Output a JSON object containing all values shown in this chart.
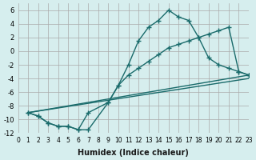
{
  "xlabel": "Humidex (Indice chaleur)",
  "ylabel": "",
  "background_color": "#d6eeee",
  "line_color": "#1a6b6b",
  "xlim": [
    0,
    23
  ],
  "ylim": [
    -12,
    7
  ],
  "yticks": [
    -12,
    -10,
    -8,
    -6,
    -4,
    -2,
    0,
    2,
    4,
    6
  ],
  "xticks": [
    0,
    1,
    2,
    3,
    4,
    5,
    6,
    7,
    8,
    9,
    10,
    11,
    12,
    13,
    14,
    15,
    16,
    17,
    18,
    19,
    20,
    21,
    22,
    23
  ],
  "line1_x": [
    1,
    2,
    3,
    4,
    5,
    6,
    7,
    9,
    10,
    11,
    12,
    13,
    14,
    15,
    16,
    17,
    18,
    19,
    20,
    21,
    22,
    23
  ],
  "line1_y": [
    -9,
    -9.5,
    -10.5,
    -11,
    -11,
    -11.5,
    -11.5,
    -7.5,
    -5,
    -2,
    1.5,
    3.5,
    4.5,
    6,
    5,
    4.5,
    2,
    -1,
    -2,
    -2.5,
    -3,
    -3.5
  ],
  "line2_x": [
    1,
    2,
    3,
    4,
    5,
    6,
    7,
    9,
    10,
    11,
    12,
    13,
    14,
    15,
    16,
    17,
    18,
    19,
    20,
    21,
    22,
    23
  ],
  "line2_y": [
    -9,
    -9.5,
    -10.5,
    -11,
    -11,
    -11.5,
    -9,
    -7.5,
    -5,
    -3.5,
    -2.5,
    -1.5,
    -0.5,
    0.5,
    1,
    1.5,
    2,
    2.5,
    3,
    3.5,
    -3,
    -3.5
  ],
  "line3_x": [
    1,
    23
  ],
  "line3_y": [
    -9,
    -4
  ],
  "line4_x": [
    1,
    23
  ],
  "line4_y": [
    -9,
    -3.5
  ],
  "grid_color": "#aaaaaa",
  "marker": "+"
}
